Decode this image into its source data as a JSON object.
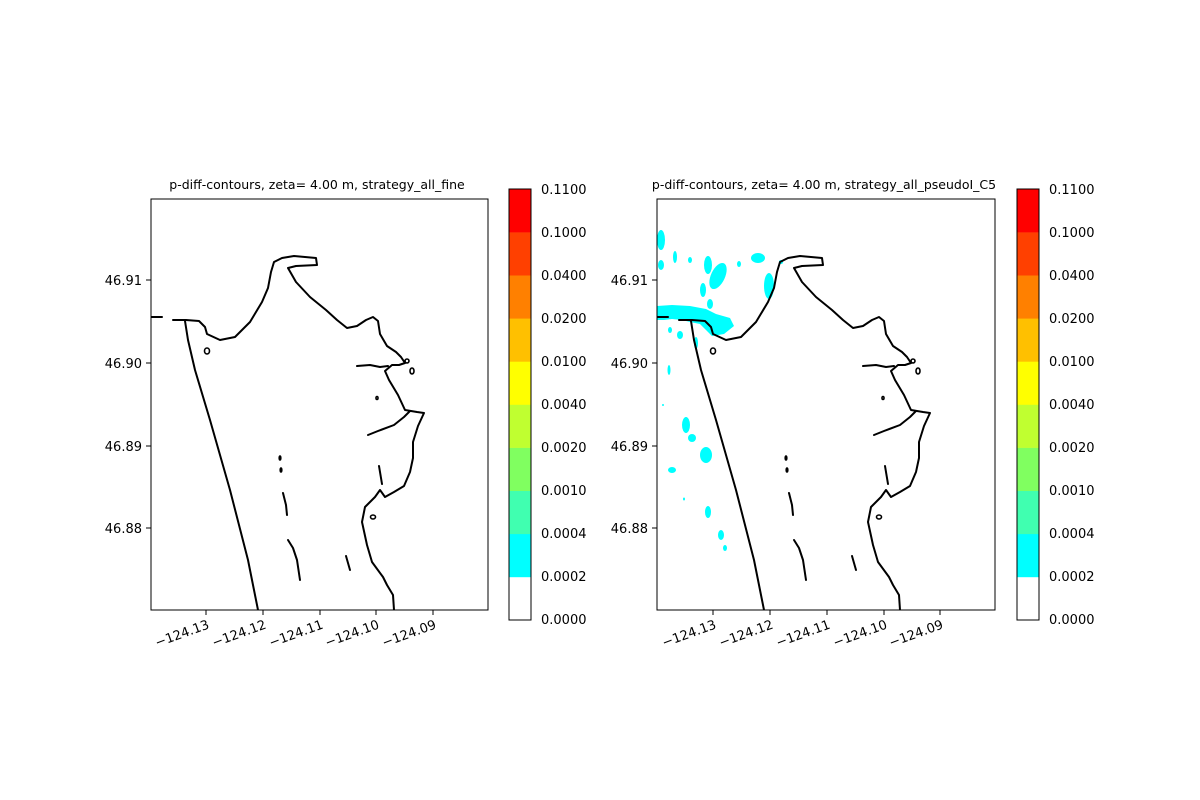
{
  "figure": {
    "panels": [
      {
        "title": "p-diff-contours, zeta= 4.00 m, strategy_all_fine",
        "x_ticks": [
          "−124.13",
          "−124.12",
          "−124.11",
          "−124.10",
          "−124.09"
        ],
        "y_ticks": [
          "46.91",
          "46.90",
          "46.89",
          "46.88"
        ],
        "colorbar_ticks": [
          "0.1100",
          "0.1000",
          "0.0400",
          "0.0200",
          "0.0100",
          "0.0040",
          "0.0020",
          "0.0010",
          "0.0004",
          "0.0002",
          "0.0000"
        ],
        "has_overlay": false
      },
      {
        "title": "p-diff-contours, zeta= 4.00 m, strategy_all_pseudoI_C5",
        "x_ticks": [
          "−124.13",
          "−124.12",
          "−124.11",
          "−124.10",
          "−124.09"
        ],
        "y_ticks": [
          "46.91",
          "46.90",
          "46.89",
          "46.88"
        ],
        "colorbar_ticks": [
          "0.1100",
          "0.1000",
          "0.0400",
          "0.0200",
          "0.0100",
          "0.0040",
          "0.0020",
          "0.0010",
          "0.0004",
          "0.0002",
          "0.0000"
        ],
        "has_overlay": true
      }
    ],
    "colorbar_colors": [
      "#ffffff",
      "#00ffff",
      "#40ffb0",
      "#80ff60",
      "#c0ff30",
      "#ffff00",
      "#ffc000",
      "#ff8000",
      "#ff4000",
      "#ff0000"
    ],
    "coast_color": "#000000",
    "overlay_color": "#00ffff",
    "axis_ranges": {
      "x": [
        -124.14,
        -124.08
      ],
      "y": [
        46.871,
        46.92
      ]
    }
  }
}
